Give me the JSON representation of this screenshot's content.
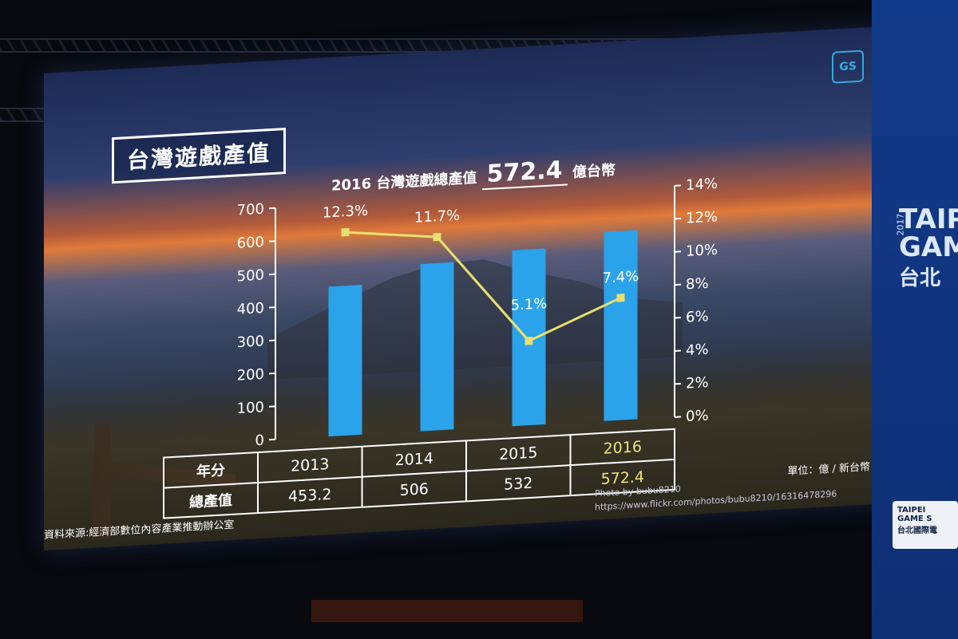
{
  "slide": {
    "title": "台灣遊戲產值",
    "subtitle_prefix": "2016 台灣遊戲總產值",
    "subtitle_value": "572.4",
    "subtitle_suffix": "億台幣",
    "logo_text": "GS",
    "unit_note": "單位：億 / 新台幣",
    "source_note": "資料來源:經濟部數位內容產業推動辦公室",
    "photo_credit_line1": "Photo by bubu8210",
    "photo_credit_line2": "https://www.flickr.com/photos/bubu8210/16316478296"
  },
  "chart_data": {
    "type": "bar",
    "categories": [
      "2013",
      "2014",
      "2015",
      "2016"
    ],
    "series": [
      {
        "values": [
          453.2,
          506,
          532,
          572.4
        ],
        "color": "#2aa3ea",
        "axis": "left"
      },
      {
        "values": [
          12.3,
          11.7,
          5.1,
          7.4
        ],
        "type": "line",
        "color": "#e8e070",
        "axis": "right",
        "labels": [
          "12.3%",
          "11.7%",
          "5.1%",
          "7.4%"
        ]
      }
    ],
    "yleft": {
      "range": [
        0,
        700
      ],
      "ticks": [
        "0",
        "100",
        "200",
        "300",
        "400",
        "500",
        "600",
        "700"
      ]
    },
    "yright": {
      "range": [
        0,
        14
      ],
      "ticks": [
        "0%",
        "2%",
        "4%",
        "6%",
        "8%",
        "10%",
        "12%",
        "14%"
      ]
    },
    "table": {
      "row_headers": [
        "年分",
        "總產值"
      ],
      "years": [
        "2013",
        "2014",
        "2015",
        "2016"
      ],
      "values": [
        "453.2",
        "506",
        "532",
        "572.4"
      ]
    }
  },
  "side_banner": {
    "year": "2017",
    "line1": "TAIPE",
    "line2": "GAM",
    "line3": "台北",
    "booth_line1": "TAIPEI",
    "booth_line2": "GAME S",
    "booth_line3": "台北國際電"
  }
}
